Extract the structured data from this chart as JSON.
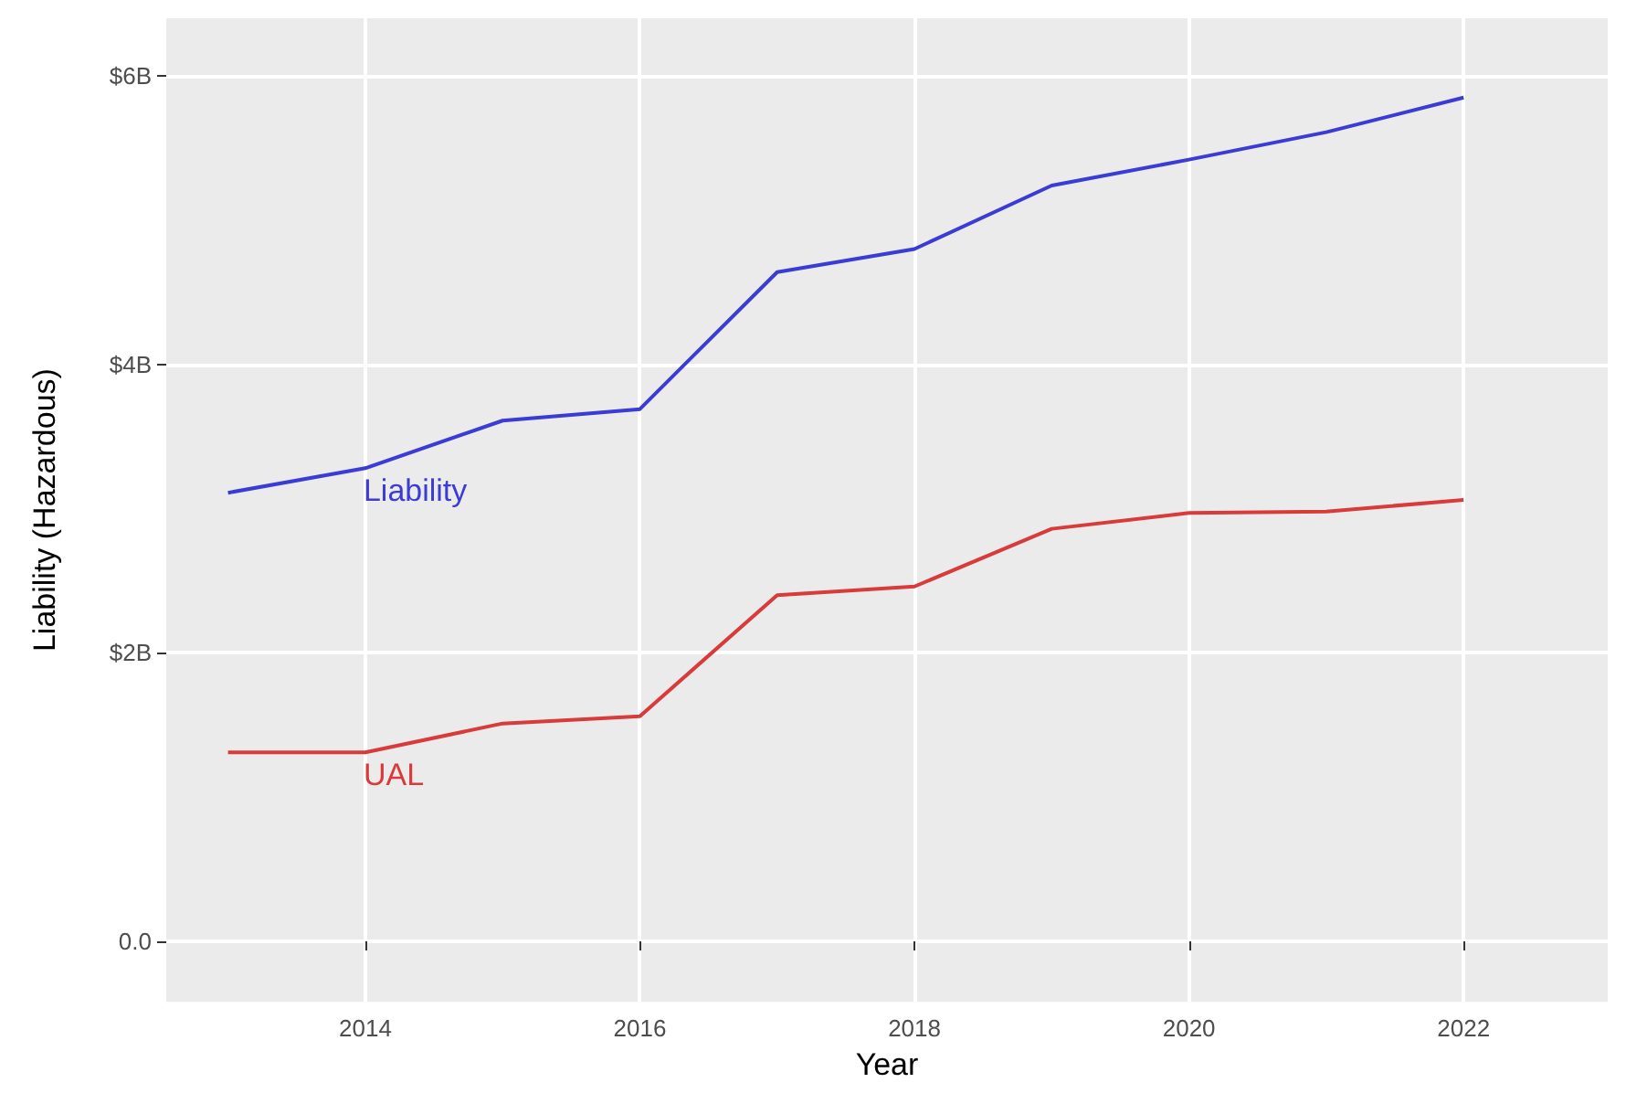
{
  "chart_data": {
    "type": "line",
    "xlabel": "Year",
    "ylabel": "Liability (Hazardous)",
    "x": [
      2013,
      2014,
      2015,
      2016,
      2017,
      2018,
      2019,
      2020,
      2021,
      2022
    ],
    "series": [
      {
        "name": "Liability",
        "color": "#3b3bd6",
        "values": [
          3.11,
          3.28,
          3.61,
          3.69,
          4.64,
          4.8,
          5.24,
          5.42,
          5.61,
          5.85
        ]
      },
      {
        "name": "UAL",
        "color": "#d93b3b",
        "values": [
          1.31,
          1.31,
          1.51,
          1.56,
          2.4,
          2.46,
          2.86,
          2.97,
          2.98,
          3.06
        ]
      }
    ],
    "xlim": [
      2012.55,
      2023.05
    ],
    "xticks": [
      2014,
      2016,
      2018,
      2020,
      2022
    ],
    "ylim": [
      -0.42,
      6.4
    ],
    "yticks": [
      {
        "value": 0,
        "label": "0.0"
      },
      {
        "value": 2,
        "label": "$2B"
      },
      {
        "value": 4,
        "label": "$4B"
      },
      {
        "value": 6,
        "label": "$6B"
      }
    ],
    "grid": true,
    "legend": false,
    "marker": "none",
    "line_style": "solid"
  }
}
